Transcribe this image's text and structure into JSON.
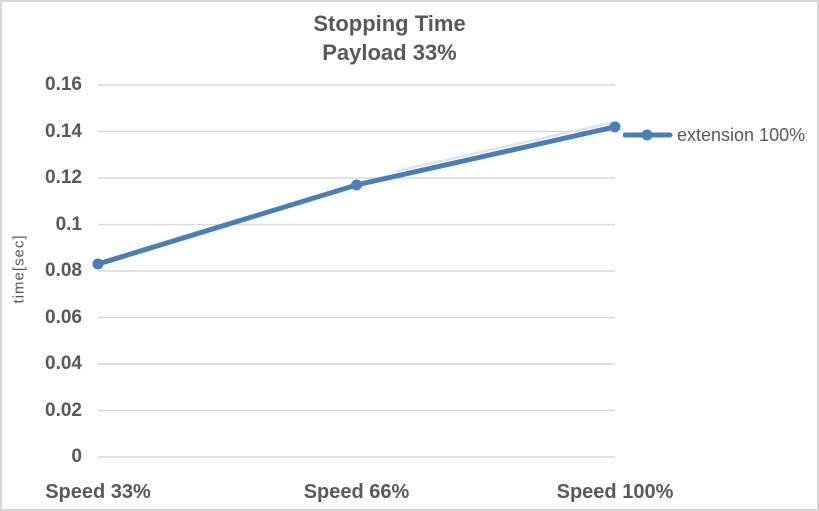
{
  "chart_data": {
    "type": "line",
    "title": "Stopping Time",
    "subtitle": "Payload 33%",
    "categories": [
      "Speed 33%",
      "Speed 66%",
      "Speed 100%"
    ],
    "series": [
      {
        "name": "extension 100%",
        "values": [
          0.083,
          0.117,
          0.142
        ]
      }
    ],
    "xlabel": "",
    "ylabel": "time[sec]",
    "ylim": [
      0,
      0.16
    ],
    "ytick_step": 0.02,
    "ytick_labels": [
      "0",
      "0.02",
      "0.04",
      "0.06",
      "0.08",
      "0.1",
      "0.12",
      "0.14",
      "0.16"
    ],
    "grid": true,
    "legend_position": "right",
    "colors": {
      "series": "#4a7ebb",
      "gridline": "#d9d9d9",
      "text": "#595959",
      "border": "#d7d7d7",
      "background": "#ffffff"
    }
  }
}
